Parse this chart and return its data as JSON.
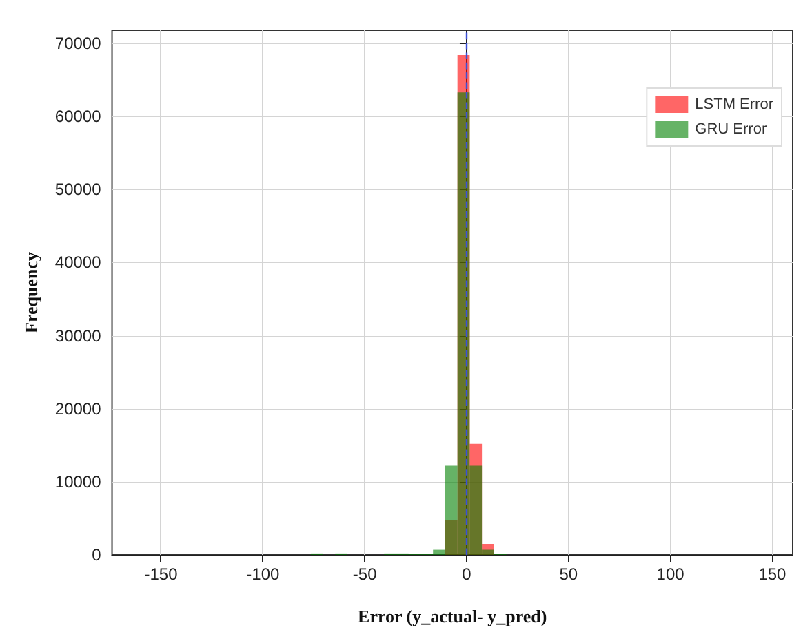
{
  "chart_data": {
    "type": "histogram",
    "xlabel": "Error (y_actual- y_pred)",
    "ylabel": "Frequency",
    "bins": [
      -76.5,
      -70.5,
      -64.5,
      -58.5,
      -52.5,
      -46.5,
      -40.5,
      -34.5,
      -28.5,
      -22.5,
      -16.5,
      -10.5,
      -4.5,
      1.5,
      7.5,
      13.5,
      19.5
    ],
    "series": [
      {
        "name": "LSTM Error",
        "color": "#ff0000",
        "values": [
          0,
          0,
          0,
          0,
          0,
          0,
          0,
          0,
          0,
          0,
          null,
          4800,
          68400,
          15200,
          1500,
          null
        ]
      },
      {
        "name": "GRU Error",
        "color": "#008000",
        "values": [
          200,
          0,
          200,
          0,
          0,
          0,
          200,
          200,
          200,
          200,
          700,
          12200,
          63300,
          12200,
          700,
          200
        ]
      }
    ],
    "xlim": [
      -174,
      160
    ],
    "xticks": [
      -150,
      -100,
      -50,
      0,
      50,
      100,
      150
    ],
    "ylim": [
      0,
      71800
    ],
    "yticks": [
      0,
      10000,
      20000,
      30000,
      40000,
      50000,
      60000,
      70000
    ],
    "ref_lines": [
      {
        "axis": "x",
        "value": 0,
        "color": "#3b4fd8",
        "line_style": "dashed"
      }
    ],
    "grid": true,
    "legend": "top right"
  }
}
